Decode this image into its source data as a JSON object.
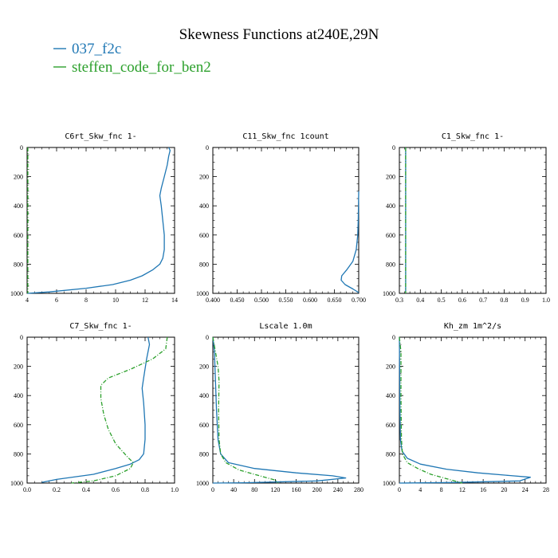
{
  "figure": {
    "title": "Skewness Functions at240E,29N",
    "legend": [
      {
        "label": "037_f2c",
        "color": "#1f77b4",
        "dash": "solid"
      },
      {
        "label": "steffen_code_for_ben2",
        "color": "#2ca02c",
        "dash": "dashdot"
      }
    ]
  },
  "chart_data": [
    {
      "type": "line",
      "title": "C6rt_Skw_fnc  1-",
      "xlim": [
        4,
        14
      ],
      "ylim": [
        1000,
        0
      ],
      "xticks": [
        4,
        6,
        8,
        10,
        12,
        14
      ],
      "xticklabels": [
        "4",
        "6",
        "8",
        "10",
        "12",
        "14"
      ],
      "yticks": [
        0,
        200,
        400,
        600,
        800,
        1000
      ],
      "series": [
        {
          "name": "037_f2c",
          "color": "#1f77b4",
          "dash": "solid",
          "points": [
            [
              13.6,
              0
            ],
            [
              13.7,
              20
            ],
            [
              13.6,
              60
            ],
            [
              13.5,
              120
            ],
            [
              13.3,
              200
            ],
            [
              13.1,
              280
            ],
            [
              13.0,
              330
            ],
            [
              13.1,
              400
            ],
            [
              13.2,
              500
            ],
            [
              13.3,
              600
            ],
            [
              13.3,
              700
            ],
            [
              13.2,
              760
            ],
            [
              13.0,
              800
            ],
            [
              12.5,
              840
            ],
            [
              11.8,
              880
            ],
            [
              11.0,
              910
            ],
            [
              9.8,
              940
            ],
            [
              8.0,
              965
            ],
            [
              5.5,
              990
            ],
            [
              4.0,
              1000
            ]
          ]
        },
        {
          "name": "steffen_code_for_ben2",
          "color": "#2ca02c",
          "dash": "dashdot",
          "points": [
            [
              4.05,
              0
            ],
            [
              4.05,
              1000
            ]
          ]
        }
      ]
    },
    {
      "type": "line",
      "title": "C11_Skw_fnc  1count",
      "xlim": [
        0.4,
        0.7
      ],
      "ylim": [
        1000,
        0
      ],
      "xticks": [
        0.4,
        0.45,
        0.5,
        0.55,
        0.6,
        0.65,
        0.7
      ],
      "xticklabels": [
        "0.400",
        "0.450",
        "0.500",
        "0.550",
        "0.600",
        "0.650",
        "0.700"
      ],
      "yticks": [
        0,
        200,
        400,
        600,
        800,
        1000
      ],
      "series": [
        {
          "name": "037_f2c",
          "color": "#1f77b4",
          "dash": "solid",
          "points": [
            [
              0.7,
              300
            ],
            [
              0.699,
              500
            ],
            [
              0.698,
              600
            ],
            [
              0.695,
              700
            ],
            [
              0.688,
              780
            ],
            [
              0.675,
              840
            ],
            [
              0.665,
              880
            ],
            [
              0.664,
              910
            ],
            [
              0.672,
              940
            ],
            [
              0.688,
              970
            ],
            [
              0.7,
              995
            ]
          ]
        }
      ]
    },
    {
      "type": "line",
      "title": "C1_Skw_fnc  1-",
      "xlim": [
        0.3,
        1.0
      ],
      "ylim": [
        1000,
        0
      ],
      "xticks": [
        0.3,
        0.4,
        0.5,
        0.6,
        0.7,
        0.8,
        0.9,
        1.0
      ],
      "xticklabels": [
        "0.3",
        "0.4",
        "0.5",
        "0.6",
        "0.7",
        "0.8",
        "0.9",
        "1.0"
      ],
      "yticks": [
        0,
        200,
        400,
        600,
        800,
        1000
      ],
      "series": [
        {
          "name": "037_f2c",
          "color": "#1f77b4",
          "dash": "solid",
          "points": [
            [
              0.33,
              0
            ],
            [
              0.33,
              1000
            ]
          ]
        },
        {
          "name": "steffen_code_for_ben2",
          "color": "#2ca02c",
          "dash": "dashdot",
          "points": [
            [
              0.33,
              0
            ],
            [
              0.33,
              1000
            ]
          ]
        }
      ]
    },
    {
      "type": "line",
      "title": "C7_Skw_fnc  1-",
      "xlim": [
        0.0,
        1.0
      ],
      "ylim": [
        1000,
        0
      ],
      "xticks": [
        0,
        0.2,
        0.4,
        0.6,
        0.8,
        1.0
      ],
      "xticklabels": [
        "0.0",
        "0.2",
        "0.4",
        "0.6",
        "0.8",
        "1.0"
      ],
      "yticks": [
        0,
        200,
        400,
        600,
        800,
        1000
      ],
      "series": [
        {
          "name": "037_f2c",
          "color": "#1f77b4",
          "dash": "solid",
          "points": [
            [
              0.82,
              0
            ],
            [
              0.83,
              50
            ],
            [
              0.81,
              150
            ],
            [
              0.79,
              280
            ],
            [
              0.78,
              350
            ],
            [
              0.79,
              450
            ],
            [
              0.8,
              600
            ],
            [
              0.8,
              700
            ],
            [
              0.79,
              800
            ],
            [
              0.76,
              840
            ],
            [
              0.7,
              870
            ],
            [
              0.6,
              900
            ],
            [
              0.45,
              940
            ],
            [
              0.2,
              975
            ],
            [
              0.1,
              995
            ]
          ]
        },
        {
          "name": "steffen_code_for_ben2",
          "color": "#2ca02c",
          "dash": "dashdot",
          "points": [
            [
              0.95,
              0
            ],
            [
              0.94,
              80
            ],
            [
              0.85,
              150
            ],
            [
              0.7,
              220
            ],
            [
              0.55,
              280
            ],
            [
              0.5,
              330
            ],
            [
              0.5,
              420
            ],
            [
              0.52,
              530
            ],
            [
              0.55,
              630
            ],
            [
              0.6,
              730
            ],
            [
              0.68,
              820
            ],
            [
              0.72,
              860
            ],
            [
              0.7,
              900
            ],
            [
              0.6,
              950
            ],
            [
              0.45,
              985
            ],
            [
              0.3,
              1000
            ]
          ]
        }
      ]
    },
    {
      "type": "line",
      "title": "Lscale  1.0m",
      "xlim": [
        0,
        280
      ],
      "ylim": [
        1000,
        0
      ],
      "xticks": [
        0,
        40,
        80,
        120,
        160,
        200,
        240,
        280
      ],
      "xticklabels": [
        "0",
        "40",
        "80",
        "120",
        "160",
        "200",
        "240",
        "280"
      ],
      "yticks": [
        0,
        200,
        400,
        600,
        800,
        1000
      ],
      "series": [
        {
          "name": "037_f2c",
          "color": "#1f77b4",
          "dash": "solid",
          "points": [
            [
              0,
              0
            ],
            [
              3,
              100
            ],
            [
              5,
              300
            ],
            [
              7,
              500
            ],
            [
              10,
              700
            ],
            [
              15,
              800
            ],
            [
              30,
              860
            ],
            [
              80,
              900
            ],
            [
              160,
              930
            ],
            [
              230,
              950
            ],
            [
              255,
              965
            ],
            [
              200,
              985
            ],
            [
              60,
              998
            ],
            [
              0,
              1000
            ]
          ]
        },
        {
          "name": "steffen_code_for_ben2",
          "color": "#2ca02c",
          "dash": "dashdot",
          "points": [
            [
              0,
              0
            ],
            [
              5,
              100
            ],
            [
              10,
              200
            ],
            [
              12,
              300
            ],
            [
              11,
              500
            ],
            [
              12,
              700
            ],
            [
              15,
              800
            ],
            [
              25,
              860
            ],
            [
              50,
              910
            ],
            [
              90,
              950
            ],
            [
              120,
              980
            ],
            [
              125,
              1000
            ]
          ]
        }
      ]
    },
    {
      "type": "line",
      "title": "Kh_zm  1m^2/s",
      "xlim": [
        0,
        28
      ],
      "ylim": [
        1000,
        0
      ],
      "xticks": [
        0,
        4,
        8,
        12,
        16,
        20,
        24,
        28
      ],
      "xticklabels": [
        "0",
        "4",
        "8",
        "12",
        "16",
        "20",
        "24",
        "28"
      ],
      "yticks": [
        0,
        200,
        400,
        600,
        800,
        1000
      ],
      "series": [
        {
          "name": "037_f2c",
          "color": "#1f77b4",
          "dash": "solid",
          "points": [
            [
              0,
              0
            ],
            [
              0.05,
              200
            ],
            [
              0.1,
              500
            ],
            [
              0.2,
              700
            ],
            [
              0.5,
              780
            ],
            [
              1.5,
              830
            ],
            [
              4,
              870
            ],
            [
              9,
              905
            ],
            [
              15,
              930
            ],
            [
              21,
              948
            ],
            [
              25,
              960
            ],
            [
              23,
              985
            ],
            [
              10,
              996
            ],
            [
              0,
              1000
            ]
          ]
        },
        {
          "name": "steffen_code_for_ben2",
          "color": "#2ca02c",
          "dash": "dashdot",
          "points": [
            [
              0,
              0
            ],
            [
              0.3,
              100
            ],
            [
              0.3,
              400
            ],
            [
              0.4,
              700
            ],
            [
              0.6,
              800
            ],
            [
              1.5,
              860
            ],
            [
              3.5,
              900
            ],
            [
              6,
              940
            ],
            [
              9,
              970
            ],
            [
              11,
              990
            ],
            [
              12,
              1000
            ]
          ]
        }
      ]
    }
  ]
}
